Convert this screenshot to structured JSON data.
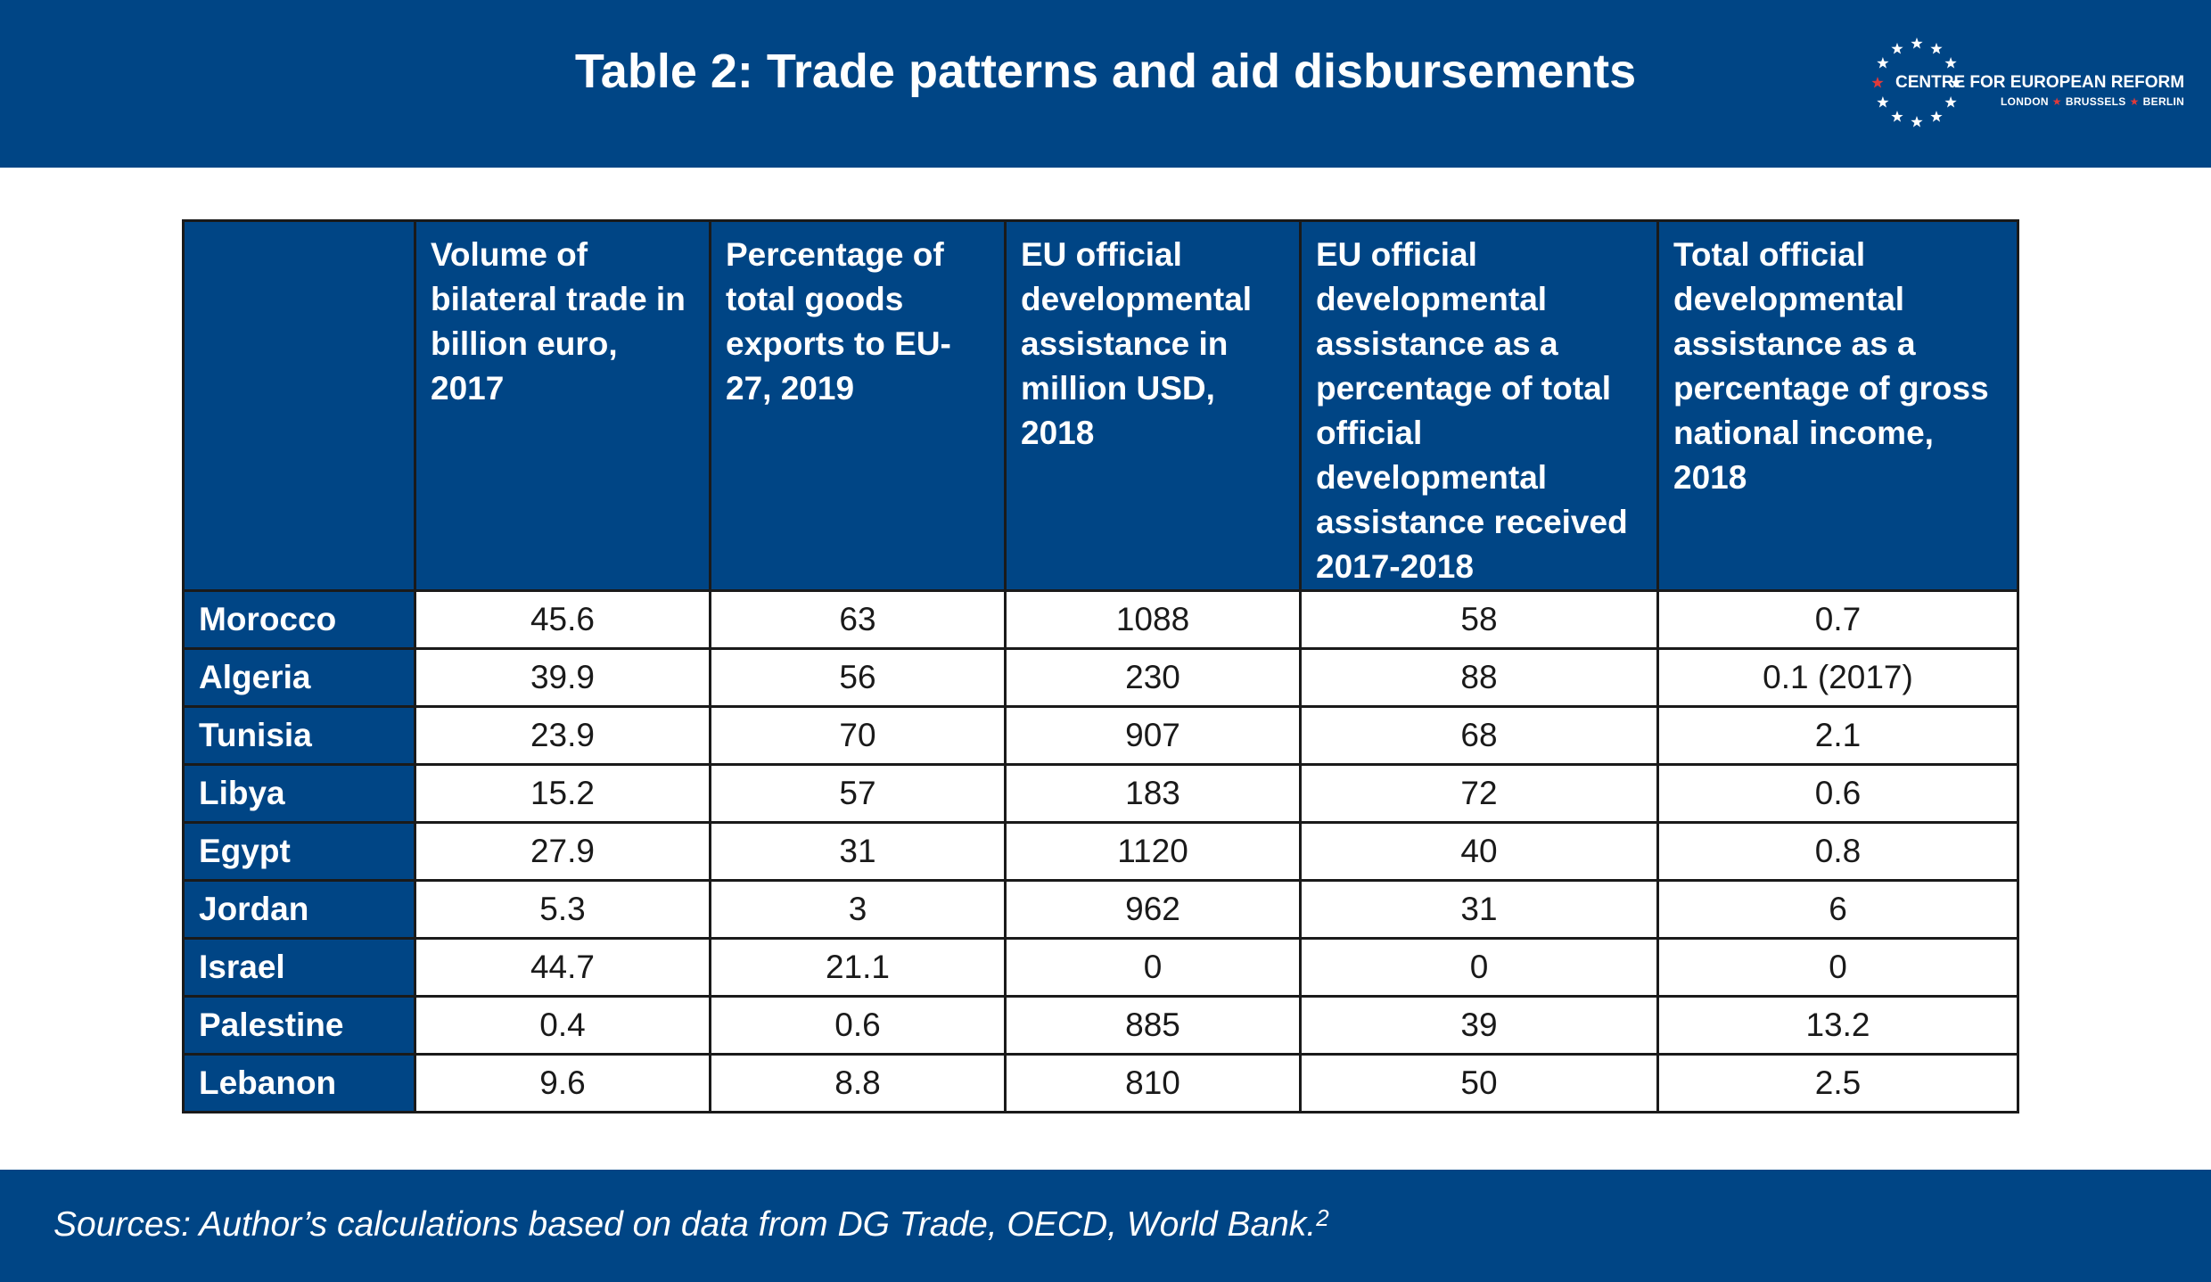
{
  "header": {
    "title": "Table 2: Trade patterns and aid disbursements",
    "logo": {
      "name": "CENTRE FOR EUROPEAN REFORM",
      "cities": [
        "LONDON",
        "BRUSSELS",
        "BERLIN"
      ],
      "star_color": "#ffffff",
      "accent_star_color": "#e03a3a"
    }
  },
  "table": {
    "columns": [
      "",
      "Volume of bilateral trade in billion euro, 2017",
      "Percentage of total goods exports to EU-27, 2019",
      "EU official developmental assistance in million USD, 2018",
      "EU official developmental assistance as a percentage of total official developmental assistance received 2017-2018",
      "Total official developmental assistance as a percentage of gross national income, 2018"
    ],
    "rows": [
      [
        "Morocco",
        "45.6",
        "63",
        "1088",
        "58",
        "0.7"
      ],
      [
        "Algeria",
        "39.9",
        "56",
        "230",
        "88",
        "0.1 (2017)"
      ],
      [
        "Tunisia",
        "23.9",
        "70",
        "907",
        "68",
        "2.1"
      ],
      [
        "Libya",
        "15.2",
        "57",
        "183",
        "72",
        "0.6"
      ],
      [
        "Egypt",
        "27.9",
        "31",
        "1120",
        "40",
        "0.8"
      ],
      [
        "Jordan",
        "5.3",
        "3",
        "962",
        "31",
        "6"
      ],
      [
        "Israel",
        "44.7",
        "21.1",
        "0",
        "0",
        "0"
      ],
      [
        "Palestine",
        "0.4",
        "0.6",
        "885",
        "39",
        "13.2"
      ],
      [
        "Lebanon",
        "9.6",
        "8.8",
        "810",
        "50",
        "2.5"
      ]
    ]
  },
  "footer": {
    "sources": "Sources: Author’s calculations based on data from DG Trade, OECD, World Bank.",
    "footnote_mark": "2"
  },
  "colors": {
    "brand_blue": "#004585",
    "text_dark": "#1a1a1a",
    "border": "#1a1a1a"
  }
}
